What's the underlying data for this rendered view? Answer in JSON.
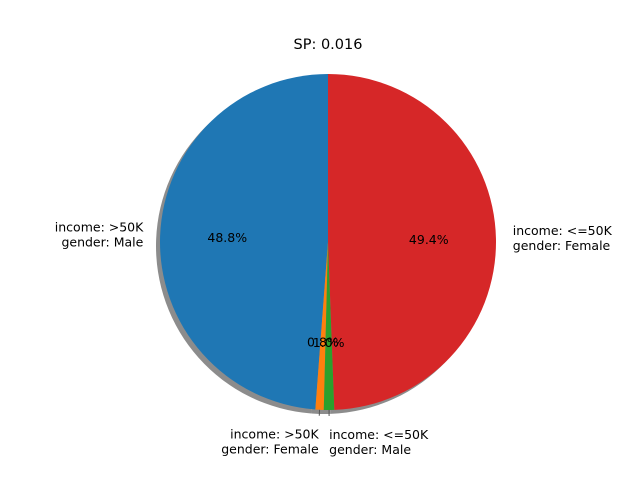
{
  "chart_data": {
    "type": "pie",
    "title": "SP: 0.016",
    "shadow": true,
    "slices": [
      {
        "label_lines": [
          "income: >50K",
          "gender: Male"
        ],
        "value": 48.8,
        "pct_label": "48.8%",
        "color": "#1f77b4"
      },
      {
        "label_lines": [
          "income: >50K",
          "gender: Female"
        ],
        "value": 0.8,
        "pct_label": "0.8%",
        "color": "#ff7f0e"
      },
      {
        "label_lines": [
          "income: <=50K",
          "gender: Male"
        ],
        "value": 1.0,
        "pct_label": "1.0%",
        "color": "#2ca02c"
      },
      {
        "label_lines": [
          "income: <=50K",
          "gender: Female"
        ],
        "value": 49.4,
        "pct_label": "49.4%",
        "color": "#d62728"
      }
    ]
  }
}
